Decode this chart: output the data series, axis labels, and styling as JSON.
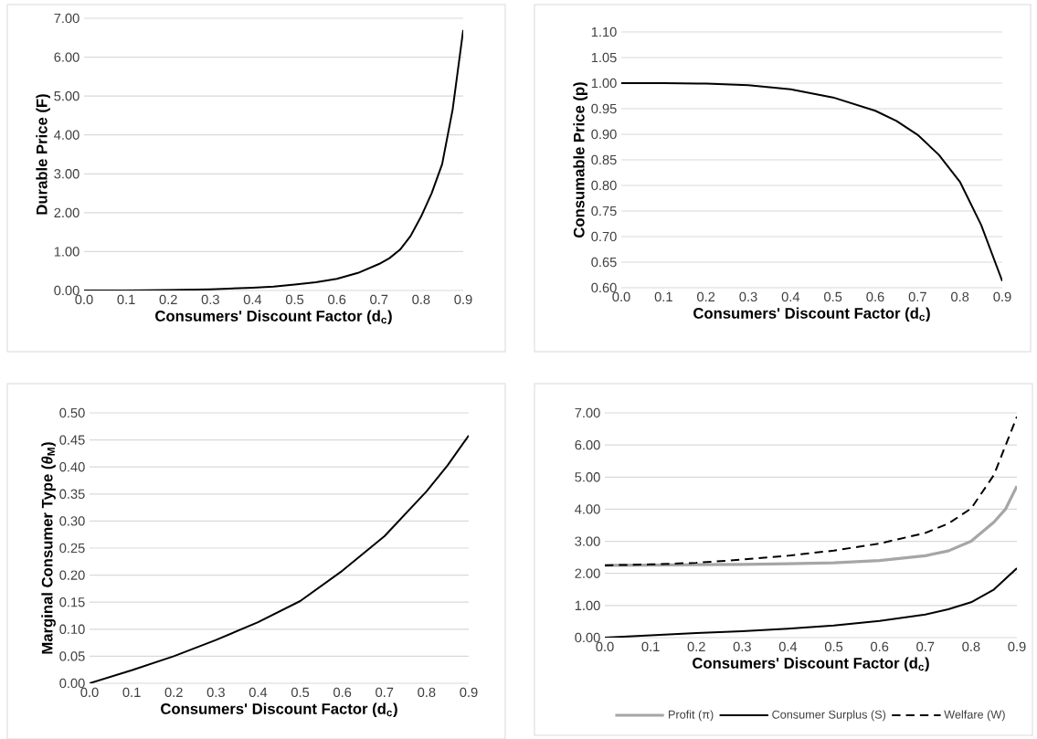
{
  "chart_data": [
    {
      "type": "line",
      "xlabel": "Consumers' Discount Factor (d$_{c}$)",
      "ylabel": "Durable Price (F)",
      "xlim": [
        0,
        0.9
      ],
      "ylim": [
        0,
        7
      ],
      "xticks": [
        {
          "value": 0,
          "label": "0.0"
        },
        {
          "value": 0.1,
          "label": "0.1"
        },
        {
          "value": 0.2,
          "label": "0.2"
        },
        {
          "value": 0.3,
          "label": "0.3"
        },
        {
          "value": 0.4,
          "label": "0.4"
        },
        {
          "value": 0.5,
          "label": "0.5"
        },
        {
          "value": 0.6,
          "label": "0.6"
        },
        {
          "value": 0.7,
          "label": "0.7"
        },
        {
          "value": 0.8,
          "label": "0.8"
        },
        {
          "value": 0.9,
          "label": "0.9"
        }
      ],
      "yticks": [
        {
          "value": 0,
          "label": "0.00"
        },
        {
          "value": 1,
          "label": "1.00"
        },
        {
          "value": 2,
          "label": "2.00"
        },
        {
          "value": 3,
          "label": "3.00"
        },
        {
          "value": 4,
          "label": "4.00"
        },
        {
          "value": 5,
          "label": "5.00"
        },
        {
          "value": 6,
          "label": "6.00"
        },
        {
          "value": 7,
          "label": "7.00"
        }
      ],
      "grid": "y",
      "legend": false,
      "series": [
        {
          "color": "#000000",
          "line_style": "solid",
          "x": [
            0,
            0.1,
            0.2,
            0.3,
            0.4,
            0.45,
            0.5,
            0.55,
            0.6,
            0.65,
            0.7,
            0.725,
            0.75,
            0.775,
            0.8,
            0.825,
            0.85,
            0.875,
            0.9
          ],
          "values": [
            0,
            0.0,
            0.01,
            0.03,
            0.07,
            0.1,
            0.15,
            0.21,
            0.3,
            0.45,
            0.68,
            0.83,
            1.05,
            1.4,
            1.9,
            2.5,
            3.25,
            4.66,
            6.7
          ]
        }
      ]
    },
    {
      "type": "line",
      "xlabel": "Consumers' Discount Factor (d$_{c}$)",
      "ylabel": "Consumable Price (p)",
      "xlim": [
        0,
        0.9
      ],
      "ylim": [
        0.6,
        1.1
      ],
      "xticks": [
        {
          "value": 0,
          "label": "0.0"
        },
        {
          "value": 0.1,
          "label": "0.1"
        },
        {
          "value": 0.2,
          "label": "0.2"
        },
        {
          "value": 0.3,
          "label": "0.3"
        },
        {
          "value": 0.4,
          "label": "0.4"
        },
        {
          "value": 0.5,
          "label": "0.5"
        },
        {
          "value": 0.6,
          "label": "0.6"
        },
        {
          "value": 0.7,
          "label": "0.7"
        },
        {
          "value": 0.8,
          "label": "0.8"
        },
        {
          "value": 0.9,
          "label": "0.9"
        }
      ],
      "yticks": [
        {
          "value": 0.6,
          "label": "0.60"
        },
        {
          "value": 0.65,
          "label": "0.65"
        },
        {
          "value": 0.7,
          "label": "0.70"
        },
        {
          "value": 0.75,
          "label": "0.75"
        },
        {
          "value": 0.8,
          "label": "0.80"
        },
        {
          "value": 0.85,
          "label": "0.85"
        },
        {
          "value": 0.9,
          "label": "0.90"
        },
        {
          "value": 0.95,
          "label": "0.95"
        },
        {
          "value": 1.0,
          "label": "1.00"
        },
        {
          "value": 1.05,
          "label": "1.05"
        },
        {
          "value": 1.1,
          "label": "1.10"
        }
      ],
      "grid": "y",
      "legend": false,
      "series": [
        {
          "color": "#000000",
          "line_style": "solid",
          "x": [
            0,
            0.1,
            0.2,
            0.3,
            0.4,
            0.5,
            0.6,
            0.65,
            0.7,
            0.75,
            0.8,
            0.85,
            0.9
          ],
          "values": [
            1.0,
            1.0,
            0.999,
            0.996,
            0.988,
            0.972,
            0.946,
            0.926,
            0.899,
            0.86,
            0.807,
            0.723,
            0.613
          ]
        }
      ]
    },
    {
      "type": "line",
      "xlabel": "Consumers' Discount Factor (d$_{c}$)",
      "ylabel": "Marginal Consumer Type (*θ*$_{M}$)",
      "xlim": [
        0,
        0.9
      ],
      "ylim": [
        0,
        0.5
      ],
      "xticks": [
        {
          "value": 0,
          "label": "0.0"
        },
        {
          "value": 0.1,
          "label": "0.1"
        },
        {
          "value": 0.2,
          "label": "0.2"
        },
        {
          "value": 0.3,
          "label": "0.3"
        },
        {
          "value": 0.4,
          "label": "0.4"
        },
        {
          "value": 0.5,
          "label": "0.5"
        },
        {
          "value": 0.6,
          "label": "0.6"
        },
        {
          "value": 0.7,
          "label": "0.7"
        },
        {
          "value": 0.8,
          "label": "0.8"
        },
        {
          "value": 0.9,
          "label": "0.9"
        }
      ],
      "yticks": [
        {
          "value": 0,
          "label": "0.00"
        },
        {
          "value": 0.05,
          "label": "0.05"
        },
        {
          "value": 0.1,
          "label": "0.10"
        },
        {
          "value": 0.15,
          "label": "0.15"
        },
        {
          "value": 0.2,
          "label": "0.20"
        },
        {
          "value": 0.25,
          "label": "0.25"
        },
        {
          "value": 0.3,
          "label": "0.30"
        },
        {
          "value": 0.35,
          "label": "0.35"
        },
        {
          "value": 0.4,
          "label": "0.40"
        },
        {
          "value": 0.45,
          "label": "0.45"
        },
        {
          "value": 0.5,
          "label": "0.50"
        }
      ],
      "grid": "y",
      "legend": false,
      "series": [
        {
          "color": "#000000",
          "line_style": "solid",
          "x": [
            0,
            0.1,
            0.2,
            0.3,
            0.4,
            0.5,
            0.6,
            0.7,
            0.8,
            0.85,
            0.9
          ],
          "values": [
            0,
            0.024,
            0.05,
            0.08,
            0.113,
            0.152,
            0.208,
            0.272,
            0.355,
            0.403,
            0.458
          ]
        }
      ]
    },
    {
      "type": "line",
      "xlabel": "Consumers' Discount Factor (d$_{c}$)",
      "xlim": [
        0,
        0.9
      ],
      "ylim": [
        0,
        7
      ],
      "xticks": [
        {
          "value": 0,
          "label": "0.0"
        },
        {
          "value": 0.1,
          "label": "0.1"
        },
        {
          "value": 0.2,
          "label": "0.2"
        },
        {
          "value": 0.3,
          "label": "0.3"
        },
        {
          "value": 0.4,
          "label": "0.4"
        },
        {
          "value": 0.5,
          "label": "0.5"
        },
        {
          "value": 0.6,
          "label": "0.6"
        },
        {
          "value": 0.7,
          "label": "0.7"
        },
        {
          "value": 0.8,
          "label": "0.8"
        },
        {
          "value": 0.9,
          "label": "0.9"
        }
      ],
      "yticks": [
        {
          "value": 0,
          "label": "0.00"
        },
        {
          "value": 1,
          "label": "1.00"
        },
        {
          "value": 2,
          "label": "2.00"
        },
        {
          "value": 3,
          "label": "3.00"
        },
        {
          "value": 4,
          "label": "4.00"
        },
        {
          "value": 5,
          "label": "5.00"
        },
        {
          "value": 6,
          "label": "6.00"
        },
        {
          "value": 7,
          "label": "7.00"
        }
      ],
      "grid": "y",
      "legend": "bottom",
      "series": [
        {
          "name": "Profit (π)",
          "color": "#a6a6a6",
          "line_style": "solid",
          "x": [
            0,
            0.1,
            0.2,
            0.3,
            0.4,
            0.5,
            0.6,
            0.7,
            0.75,
            0.8,
            0.85,
            0.875,
            0.9
          ],
          "values": [
            2.25,
            2.26,
            2.27,
            2.28,
            2.3,
            2.33,
            2.4,
            2.55,
            2.7,
            3.0,
            3.6,
            4.0,
            4.72
          ]
        },
        {
          "name": "Consumer Surplus (S)",
          "color": "#000000",
          "line_style": "solid",
          "x": [
            0,
            0.1,
            0.2,
            0.3,
            0.4,
            0.5,
            0.6,
            0.7,
            0.75,
            0.8,
            0.85,
            0.9
          ],
          "values": [
            0,
            0.07,
            0.14,
            0.2,
            0.28,
            0.38,
            0.52,
            0.72,
            0.88,
            1.1,
            1.5,
            2.16
          ]
        },
        {
          "name": "Welfare (W)",
          "color": "#000000",
          "line_style": "dashed",
          "x": [
            0,
            0.1,
            0.2,
            0.3,
            0.4,
            0.5,
            0.6,
            0.7,
            0.75,
            0.8,
            0.85,
            0.9
          ],
          "values": [
            2.25,
            2.28,
            2.33,
            2.43,
            2.55,
            2.71,
            2.93,
            3.26,
            3.55,
            4.02,
            5.07,
            6.88
          ]
        }
      ]
    }
  ]
}
